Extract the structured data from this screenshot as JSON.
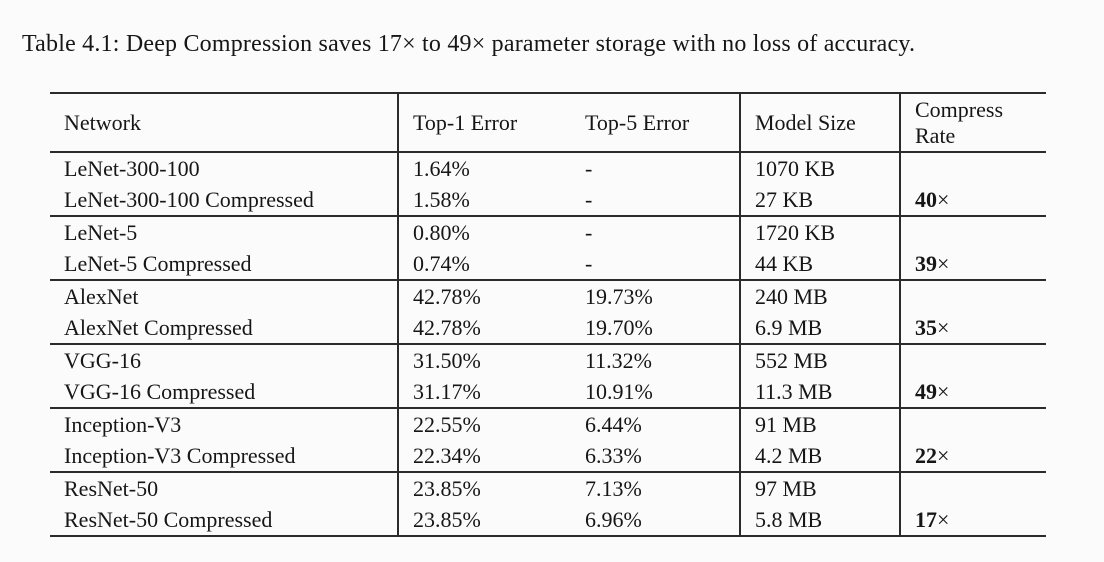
{
  "page": {
    "caption": "Table 4.1: Deep Compression saves 17× to 49× parameter storage with no loss of accuracy."
  },
  "colors": {
    "background": "#fbfbfb",
    "text": "#161616",
    "rules": "#2b2b2b"
  },
  "table": {
    "headers": [
      "Network",
      "Top-1 Error",
      "Top-5 Error",
      "Model Size",
      "Compress Rate"
    ],
    "groups": [
      {
        "rows": [
          {
            "network": "LeNet-300-100",
            "top1": "1.64%",
            "top5": "-",
            "size": "1070 KB",
            "rate_num": "",
            "rate_times": ""
          },
          {
            "network": "LeNet-300-100 Compressed",
            "top1": "1.58%",
            "top5": "-",
            "size": "27 KB",
            "rate_num": "40",
            "rate_times": "×"
          }
        ]
      },
      {
        "rows": [
          {
            "network": "LeNet-5",
            "top1": "0.80%",
            "top5": "-",
            "size": "1720 KB",
            "rate_num": "",
            "rate_times": ""
          },
          {
            "network": "LeNet-5 Compressed",
            "top1": "0.74%",
            "top5": "-",
            "size": "44 KB",
            "rate_num": "39",
            "rate_times": "×"
          }
        ]
      },
      {
        "rows": [
          {
            "network": "AlexNet",
            "top1": "42.78%",
            "top5": "19.73%",
            "size": "240 MB",
            "rate_num": "",
            "rate_times": ""
          },
          {
            "network": "AlexNet Compressed",
            "top1": "42.78%",
            "top5": "19.70%",
            "size": "6.9 MB",
            "rate_num": "35",
            "rate_times": "×"
          }
        ]
      },
      {
        "rows": [
          {
            "network": "VGG-16",
            "top1": "31.50%",
            "top5": "11.32%",
            "size": "552 MB",
            "rate_num": "",
            "rate_times": ""
          },
          {
            "network": "VGG-16 Compressed",
            "top1": "31.17%",
            "top5": "10.91%",
            "size": "11.3 MB",
            "rate_num": "49",
            "rate_times": "×"
          }
        ]
      },
      {
        "rows": [
          {
            "network": "Inception-V3",
            "top1": "22.55%",
            "top5": "6.44%",
            "size": "91 MB",
            "rate_num": "",
            "rate_times": ""
          },
          {
            "network": "Inception-V3 Compressed",
            "top1": "22.34%",
            "top5": "6.33%",
            "size": "4.2 MB",
            "rate_num": "22",
            "rate_times": "×"
          }
        ]
      },
      {
        "rows": [
          {
            "network": "ResNet-50",
            "top1": "23.85%",
            "top5": "7.13%",
            "size": "97 MB",
            "rate_num": "",
            "rate_times": ""
          },
          {
            "network": "ResNet-50 Compressed",
            "top1": "23.85%",
            "top5": "6.96%",
            "size": "5.8 MB",
            "rate_num": "17",
            "rate_times": "×"
          }
        ]
      }
    ]
  },
  "chart_data": {
    "type": "table",
    "title": "Table 4.1: Deep Compression saves 17× to 49× parameter storage with no loss of accuracy.",
    "columns": [
      "Network",
      "Top-1 Error",
      "Top-5 Error",
      "Model Size",
      "Compress Rate"
    ],
    "rows": [
      [
        "LeNet-300-100",
        "1.64%",
        "-",
        "1070 KB",
        ""
      ],
      [
        "LeNet-300-100 Compressed",
        "1.58%",
        "-",
        "27 KB",
        "40×"
      ],
      [
        "LeNet-5",
        "0.80%",
        "-",
        "1720 KB",
        ""
      ],
      [
        "LeNet-5 Compressed",
        "0.74%",
        "-",
        "44 KB",
        "39×"
      ],
      [
        "AlexNet",
        "42.78%",
        "19.73%",
        "240 MB",
        ""
      ],
      [
        "AlexNet Compressed",
        "42.78%",
        "19.70%",
        "6.9 MB",
        "35×"
      ],
      [
        "VGG-16",
        "31.50%",
        "11.32%",
        "552 MB",
        ""
      ],
      [
        "VGG-16 Compressed",
        "31.17%",
        "10.91%",
        "11.3 MB",
        "49×"
      ],
      [
        "Inception-V3",
        "22.55%",
        "6.44%",
        "91 MB",
        ""
      ],
      [
        "Inception-V3 Compressed",
        "22.34%",
        "6.33%",
        "4.2 MB",
        "22×"
      ],
      [
        "ResNet-50",
        "23.85%",
        "7.13%",
        "97 MB",
        ""
      ],
      [
        "ResNet-50 Compressed",
        "23.85%",
        "6.96%",
        "5.8 MB",
        "17×"
      ]
    ]
  }
}
